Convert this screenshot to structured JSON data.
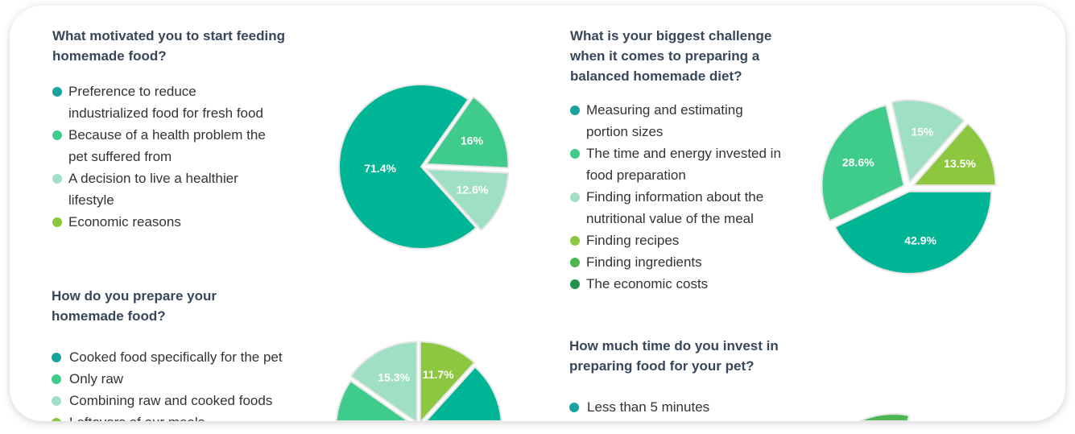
{
  "colors": {
    "teal": "#00b596",
    "green": "#3ecb8c",
    "light": "#9fdfc4",
    "lime": "#8dc63f",
    "mid_green": "#4cb652",
    "dark_green": "#23924f",
    "title": "#37475a"
  },
  "questions": [
    {
      "title_lines": [
        "What motivated you to start feeding",
        "homemade food?"
      ],
      "legend": [
        {
          "lines": [
            "Preference to reduce",
            "industrialized food for fresh food"
          ],
          "color": "#1aa39a"
        },
        {
          "lines": [
            "Because of a health problem the",
            "pet suffered from"
          ],
          "color": "#3ecb8c"
        },
        {
          "lines": [
            "A decision to live a healthier",
            "lifestyle"
          ],
          "color": "#a3dfc6"
        },
        {
          "lines": [
            "Economic reasons"
          ],
          "color": "#8dc63f"
        }
      ]
    },
    {
      "title_lines": [
        "What is your biggest challenge",
        "when it comes to preparing a",
        "balanced homemade diet?"
      ],
      "legend": [
        {
          "lines": [
            "Measuring and estimating",
            "portion sizes"
          ],
          "color": "#1aa39a"
        },
        {
          "lines": [
            "The time and energy invested in",
            "food preparation"
          ],
          "color": "#3ecb8c"
        },
        {
          "lines": [
            "Finding information about the",
            "nutritional value of the meal"
          ],
          "color": "#a3dfc6"
        },
        {
          "lines": [
            "Finding recipes"
          ],
          "color": "#8dc63f"
        },
        {
          "lines": [
            "Finding ingredients"
          ],
          "color": "#4cb652"
        },
        {
          "lines": [
            "The economic costs"
          ],
          "color": "#23924f"
        }
      ]
    },
    {
      "title_lines": [
        "How do you prepare your",
        "homemade food?"
      ],
      "legend": [
        {
          "lines": [
            "Cooked food specifically for the pet"
          ],
          "color": "#1aa39a"
        },
        {
          "lines": [
            "Only raw"
          ],
          "color": "#3ecb8c"
        },
        {
          "lines": [
            "Combining raw and cooked foods"
          ],
          "color": "#a3dfc6"
        },
        {
          "lines": [
            "Leftovers of our meals"
          ],
          "color": "#8dc63f"
        }
      ]
    },
    {
      "title_lines": [
        "How much time do you invest in",
        "preparing food for your pet?"
      ],
      "legend": [
        {
          "lines": [
            "Less than 5 minutes"
          ],
          "color": "#1aa39a"
        }
      ]
    }
  ],
  "chart_data": [
    {
      "type": "pie",
      "slices": [
        {
          "label": "71.4%",
          "value": 71.4,
          "color": "#00b596"
        },
        {
          "label": "16%",
          "value": 16,
          "color": "#3ecb8c"
        },
        {
          "label": "12.6%",
          "value": 12.6,
          "color": "#9fdfc4"
        }
      ]
    },
    {
      "type": "pie",
      "slices": [
        {
          "label": "42.9%",
          "value": 42.9,
          "color": "#00b596"
        },
        {
          "label": "28.6%",
          "value": 28.6,
          "color": "#3ecb8c"
        },
        {
          "label": "15%",
          "value": 15,
          "color": "#9fdfc4"
        },
        {
          "label": "13.5%",
          "value": 13.5,
          "color": "#8dc63f"
        }
      ]
    },
    {
      "type": "pie",
      "slices": [
        {
          "label": "15.3%",
          "value": 15.3,
          "color": "#9fdfc4"
        },
        {
          "label": "11.7%",
          "value": 11.7,
          "color": "#8dc63f"
        },
        {
          "label": "",
          "value": null,
          "color": "#00b596"
        },
        {
          "label": "",
          "value": null,
          "color": "#3ecb8c"
        }
      ]
    },
    {
      "type": "pie",
      "slices": [
        {
          "label": "",
          "value": null,
          "color": "#8dc63f"
        },
        {
          "label": "",
          "value": null,
          "color": "#4cb652"
        },
        {
          "label": "",
          "value": null,
          "color": "#23924f"
        }
      ]
    }
  ]
}
